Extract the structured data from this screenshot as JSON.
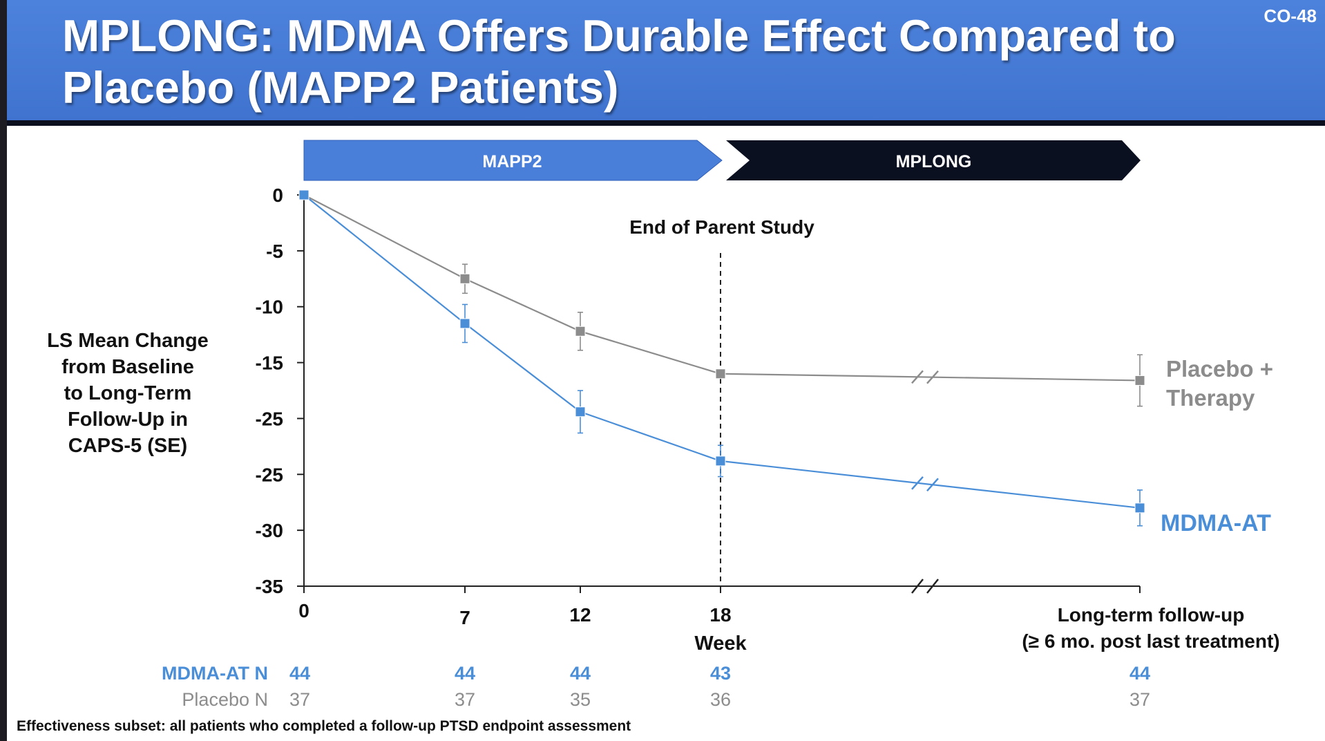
{
  "slide": {
    "title": "MPLONG: MDMA Offers Durable Effect Compared to Placebo (MAPP2 Patients)",
    "slide_number": "CO-48",
    "footnote": "Effectiveness subset: all patients who completed a follow-up PTSD endpoint assessment"
  },
  "colors": {
    "header": "#4a7fd9",
    "mapp2_phase": "#4a7fd9",
    "mplong_phase": "#0b1020",
    "mdma_series": "#4a8ed8",
    "placebo_series": "#8c8c8c"
  },
  "chart_data": {
    "type": "line",
    "phases": [
      {
        "label": "MAPP2",
        "x_start": "0",
        "x_end": "18"
      },
      {
        "label": "MPLONG",
        "x_start": "18",
        "x_end": "Long-term follow-up"
      }
    ],
    "ylabel_lines": [
      "LS Mean Change",
      "from Baseline",
      "to Long-Term",
      "Follow-Up in",
      "CAPS-5 (SE)"
    ],
    "xlabel": "Week",
    "x_ticks": [
      "0",
      "7",
      "12",
      "18"
    ],
    "x_end_label_lines": [
      "Long-term follow-up",
      "(≥ 6 mo. post last treatment)"
    ],
    "y_tick_labels": [
      "0",
      "-5",
      "-10",
      "-15",
      "-25",
      "-25",
      "-30",
      "-35"
    ],
    "ylim": [
      -35,
      0
    ],
    "annotation": {
      "text": "End of Parent Study",
      "x": "18"
    },
    "axis_break": {
      "between": [
        "18",
        "Long-term follow-up"
      ]
    },
    "series": [
      {
        "name": "Placebo + Therapy",
        "label_lines": [
          "Placebo +",
          "Therapy"
        ],
        "x": [
          "0",
          "7",
          "12",
          "18",
          "Long-term follow-up"
        ],
        "values": [
          0,
          -7.5,
          -12.2,
          -16,
          -16.6
        ],
        "se": [
          0,
          1.3,
          1.7,
          0,
          2.3
        ]
      },
      {
        "name": "MDMA-AT",
        "label_lines": [
          "MDMA-AT"
        ],
        "x": [
          "0",
          "7",
          "12",
          "18",
          "Long-term follow-up"
        ],
        "values": [
          0,
          -11.5,
          -19.4,
          -23.8,
          -28
        ],
        "se": [
          0,
          1.7,
          1.9,
          1.4,
          1.6
        ]
      }
    ],
    "n_table": [
      {
        "label": "MDMA-AT N",
        "values": [
          "44",
          "44",
          "44",
          "43",
          "44"
        ]
      },
      {
        "label": "Placebo N",
        "values": [
          "37",
          "37",
          "35",
          "36",
          "37"
        ]
      }
    ]
  }
}
